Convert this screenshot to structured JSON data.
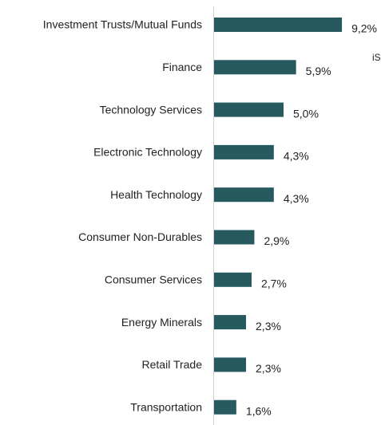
{
  "chart_data": {
    "type": "hbar",
    "categories": [
      "Investment Trusts/Mutual Funds",
      "Finance",
      "Technology Services",
      "Electronic Technology",
      "Health Technology",
      "Consumer Non-Durables",
      "Consumer Services",
      "Energy Minerals",
      "Retail Trade",
      "Transportation"
    ],
    "values": [
      9.2,
      5.9,
      5.0,
      4.3,
      4.3,
      2.9,
      2.7,
      2.3,
      2.3,
      1.6
    ],
    "value_labels": [
      "9,2%",
      "5,9%",
      "5,0%",
      "4,3%",
      "4,3%",
      "2,9%",
      "2,7%",
      "2,3%",
      "2,3%",
      "1,6%"
    ],
    "color": "#265a5f",
    "xlim": [
      0,
      10
    ],
    "annotation": "iS"
  }
}
